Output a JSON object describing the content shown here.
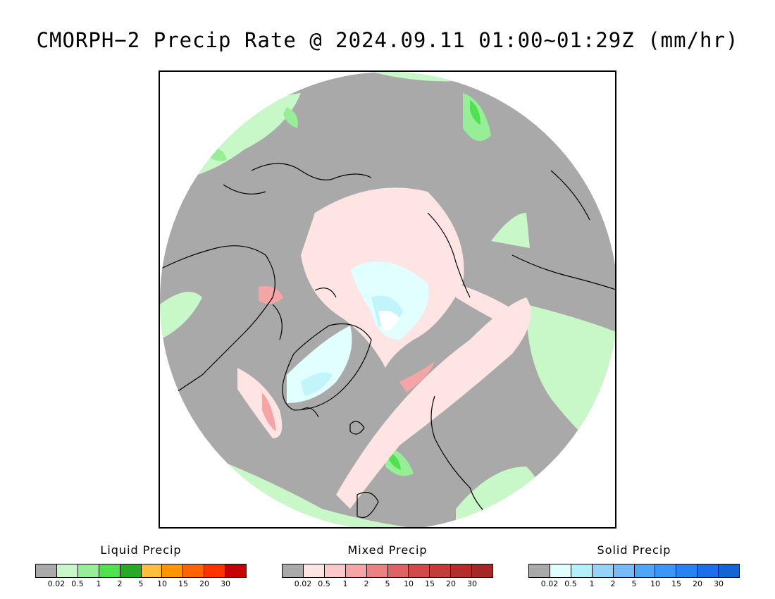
{
  "title": "CMORPH−2 Precip Rate @ 2024.09.11 01:00~01:29Z (mm/hr)",
  "map": {
    "projection": "north polar stereographic",
    "background_color": "#a9a9a9",
    "outside_color": "#ffffff",
    "coastline_color": "#000000"
  },
  "legends": [
    {
      "title": "Liquid Precip",
      "colors": [
        "#a9a9a9",
        "#c8f8c8",
        "#96ef96",
        "#50e050",
        "#28aa28",
        "#ffbe3c",
        "#ff9600",
        "#ff6400",
        "#ff3200",
        "#c80000"
      ],
      "ticks": [
        "0.02",
        "0.5",
        "1",
        "2",
        "5",
        "10",
        "15",
        "20",
        "30"
      ]
    },
    {
      "title": "Mixed Precip",
      "colors": [
        "#a9a9a9",
        "#ffe4e4",
        "#ffc8c8",
        "#f5a5a5",
        "#eb8282",
        "#dc6464",
        "#d24b4b",
        "#c33c3c",
        "#b42d2d",
        "#a52828"
      ],
      "ticks": [
        "0.02",
        "0.5",
        "1",
        "2",
        "5",
        "10",
        "15",
        "20",
        "30"
      ]
    },
    {
      "title": "Solid Precip",
      "colors": [
        "#a9a9a9",
        "#e1ffff",
        "#b4f0fa",
        "#96d2fa",
        "#78b9fa",
        "#50a5f5",
        "#3c96f5",
        "#2882f0",
        "#1e6eeb",
        "#1464d2"
      ],
      "ticks": [
        "0.02",
        "0.5",
        "1",
        "2",
        "5",
        "10",
        "15",
        "20",
        "30"
      ]
    }
  ]
}
